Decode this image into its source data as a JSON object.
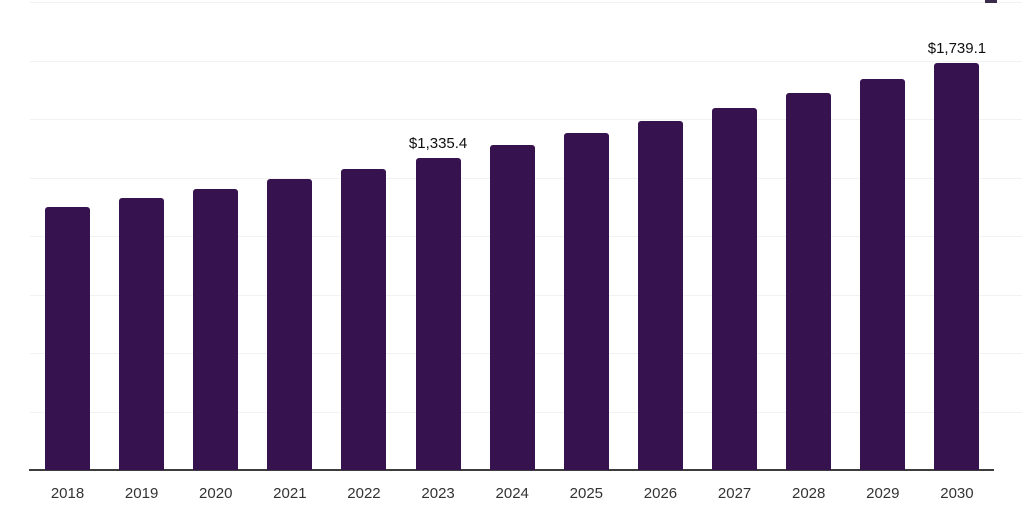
{
  "chart": {
    "background_color": "#ffffff",
    "bar_color": "#36124e",
    "gridline_color": "#f2f2f2",
    "axis_line_color": "#3d3d3d",
    "year_label_color": "#333333",
    "data_label_color": "#0f0f0f"
  },
  "chart_data": {
    "type": "bar",
    "categories": [
      "2018",
      "2019",
      "2020",
      "2021",
      "2022",
      "2023",
      "2024",
      "2025",
      "2026",
      "2027",
      "2028",
      "2029",
      "2030"
    ],
    "values": [
      1124,
      1162,
      1201,
      1243,
      1286,
      1335.4,
      1389,
      1440,
      1491,
      1547,
      1611,
      1671,
      1739.1
    ],
    "series_name": "",
    "data_labels": [
      {
        "category": "2023",
        "text": "$1,335.4"
      },
      {
        "category": "2030",
        "text": "$1,739.1"
      }
    ],
    "xlabel": "",
    "ylabel": "",
    "ylim": [
      0,
      2000
    ],
    "grid_step": 250,
    "grid": true,
    "legend_position": "none",
    "value_prefix": "$"
  }
}
